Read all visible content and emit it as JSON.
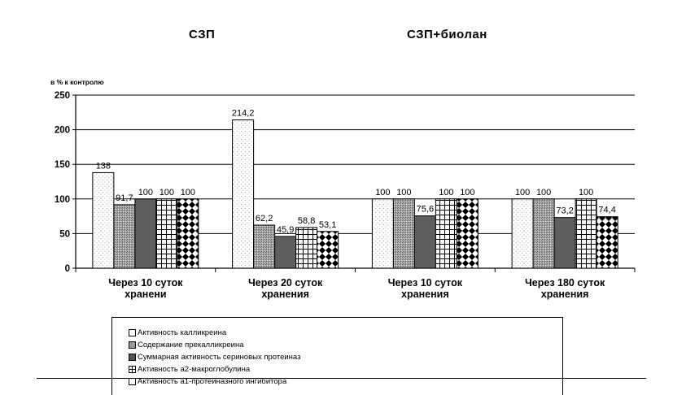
{
  "group_titles": [
    "СЗП",
    "СЗП+биолан"
  ],
  "chart_data": {
    "type": "bar",
    "ylabel": "в % к контролю",
    "ylim": [
      0,
      250
    ],
    "yticks": [
      0,
      50,
      100,
      150,
      200,
      250
    ],
    "grid": true,
    "categories": [
      [
        "Через 10 суток",
        "хранени"
      ],
      [
        "Через 20 суток",
        "хранения"
      ],
      [
        "Через 10 суток",
        "хранения"
      ],
      [
        "Через 180 суток",
        "хранения"
      ]
    ],
    "series": [
      {
        "name": "Активность калликреина",
        "pattern": "dots",
        "values": [
          138,
          214.2,
          100,
          100
        ],
        "labels": [
          "138",
          "214,2",
          "100",
          "100"
        ]
      },
      {
        "name": "Содержание прекалликреина",
        "pattern": "fine",
        "values": [
          91.7,
          62.2,
          100,
          100
        ],
        "labels": [
          "91,7",
          "62,2",
          "100",
          "100"
        ]
      },
      {
        "name": "Суммарная активность сериновых протеиназ",
        "pattern": "solid",
        "values": [
          100,
          45.9,
          75.6,
          73.2
        ],
        "labels": [
          "100",
          "45,9",
          "75,6",
          "73,2"
        ]
      },
      {
        "name": "Активность а2-макроглобулина",
        "pattern": "grid",
        "values": [
          100,
          58.8,
          100,
          100
        ],
        "labels": [
          "100",
          "58,8",
          "100",
          "100"
        ]
      },
      {
        "name": "Активность а1-протеиназного ингибитора",
        "pattern": "diamond",
        "values": [
          100,
          53.1,
          100,
          74.4
        ],
        "labels": [
          "100",
          "53,1",
          "100",
          "74,4"
        ]
      }
    ],
    "legend_position": "bottom"
  }
}
